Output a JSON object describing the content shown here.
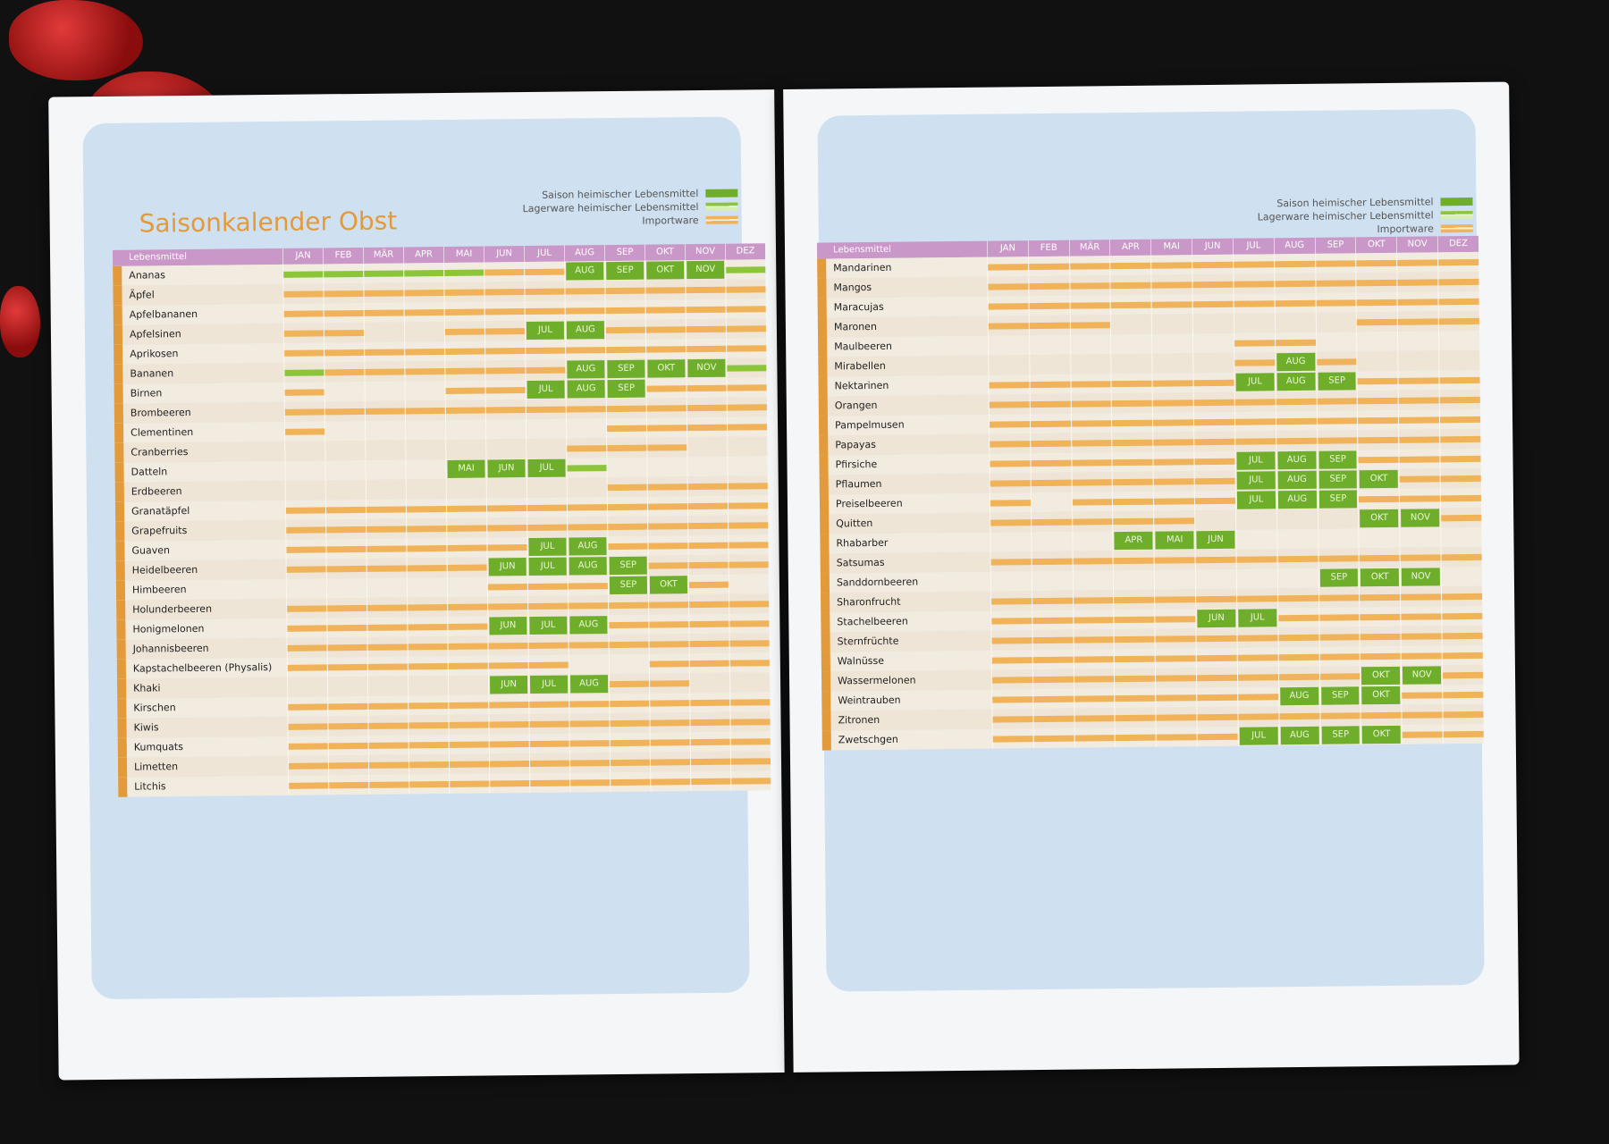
{
  "left_page": {
    "title": "Saisonkalender Obst",
    "legend": {
      "saison": "Saison heimischer Lebensmittel",
      "lager": "Lagerware heimischer Lebensmittel",
      "import": "Importware"
    },
    "column_header": "Lebensmittel",
    "months": [
      "JAN",
      "FEB",
      "MÄR",
      "APR",
      "MAI",
      "JUN",
      "JUL",
      "AUG",
      "SEP",
      "OKT",
      "NOV",
      "DEZ"
    ],
    "rows": [
      {
        "name": "Ananas",
        "cells": [
          "L",
          "L",
          "L",
          "L",
          "L",
          "I",
          "I",
          "S:AUG",
          "S:SEP",
          "S:OKT",
          "S:NOV",
          "L"
        ]
      },
      {
        "name": "Äpfel",
        "cells": [
          "I",
          "I",
          "I",
          "I",
          "I",
          "I",
          "I",
          "I",
          "I",
          "I",
          "I",
          "I"
        ]
      },
      {
        "name": "Apfelbananen",
        "cells": [
          "I",
          "I",
          "I",
          "I",
          "I",
          "I",
          "I",
          "I",
          "I",
          "I",
          "I",
          "I"
        ]
      },
      {
        "name": "Apfelsinen",
        "cells": [
          "I",
          "I",
          "",
          "",
          "I",
          "I",
          "S:JUL",
          "S:AUG",
          "I",
          "I",
          "I",
          "I"
        ]
      },
      {
        "name": "Aprikosen",
        "cells": [
          "I",
          "I",
          "I",
          "I",
          "I",
          "I",
          "I",
          "I",
          "I",
          "I",
          "I",
          "I"
        ]
      },
      {
        "name": "Bananen",
        "cells": [
          "L",
          "I",
          "I",
          "I",
          "I",
          "I",
          "I",
          "S:AUG",
          "S:SEP",
          "S:OKT",
          "S:NOV",
          "L"
        ]
      },
      {
        "name": "Birnen",
        "cells": [
          "I",
          "",
          "",
          "",
          "I",
          "I",
          "S:JUL",
          "S:AUG",
          "S:SEP",
          "I",
          "I",
          "I"
        ]
      },
      {
        "name": "Brombeeren",
        "cells": [
          "I",
          "I",
          "I",
          "I",
          "I",
          "I",
          "I",
          "I",
          "I",
          "I",
          "I",
          "I"
        ]
      },
      {
        "name": "Clementinen",
        "cells": [
          "I",
          "",
          "",
          "",
          "",
          "",
          "",
          "",
          "I",
          "I",
          "I",
          "I"
        ]
      },
      {
        "name": "Cranberries",
        "cells": [
          "",
          "",
          "",
          "",
          "",
          "",
          "",
          "I",
          "I",
          "I",
          "",
          ""
        ]
      },
      {
        "name": "Datteln",
        "cells": [
          "",
          "",
          "",
          "",
          "S:MAI",
          "S:JUN",
          "S:JUL",
          "L",
          "",
          "",
          "",
          ""
        ]
      },
      {
        "name": "Erdbeeren",
        "cells": [
          "",
          "",
          "",
          "",
          "",
          "",
          "",
          "",
          "I",
          "I",
          "I",
          "I"
        ]
      },
      {
        "name": "Granatäpfel",
        "cells": [
          "I",
          "I",
          "I",
          "I",
          "I",
          "I",
          "I",
          "I",
          "I",
          "I",
          "I",
          "I"
        ]
      },
      {
        "name": "Grapefruits",
        "cells": [
          "I",
          "I",
          "I",
          "I",
          "I",
          "I",
          "I",
          "I",
          "I",
          "I",
          "I",
          "I"
        ]
      },
      {
        "name": "Guaven",
        "cells": [
          "I",
          "I",
          "I",
          "I",
          "I",
          "I",
          "S:JUL",
          "S:AUG",
          "I",
          "I",
          "I",
          "I"
        ]
      },
      {
        "name": "Heidelbeeren",
        "cells": [
          "I",
          "I",
          "I",
          "I",
          "I",
          "S:JUN",
          "S:JUL",
          "S:AUG",
          "S:SEP",
          "I",
          "I",
          "I"
        ]
      },
      {
        "name": "Himbeeren",
        "cells": [
          "",
          "",
          "",
          "",
          "",
          "I",
          "I",
          "I",
          "S:SEP",
          "S:OKT",
          "I",
          ""
        ]
      },
      {
        "name": "Holunderbeeren",
        "cells": [
          "I",
          "I",
          "I",
          "I",
          "I",
          "I",
          "I",
          "I",
          "I",
          "I",
          "I",
          "I"
        ]
      },
      {
        "name": "Honigmelonen",
        "cells": [
          "I",
          "I",
          "I",
          "I",
          "I",
          "S:JUN",
          "S:JUL",
          "S:AUG",
          "I",
          "I",
          "I",
          "I"
        ]
      },
      {
        "name": "Johannisbeeren",
        "cells": [
          "I",
          "I",
          "I",
          "I",
          "I",
          "I",
          "I",
          "I",
          "I",
          "I",
          "I",
          "I"
        ]
      },
      {
        "name": "Kapstachelbeeren (Physalis)",
        "cells": [
          "I",
          "I",
          "I",
          "I",
          "I",
          "I",
          "I",
          "",
          "",
          "I",
          "I",
          "I"
        ]
      },
      {
        "name": "Khaki",
        "cells": [
          "",
          "",
          "",
          "",
          "",
          "S:JUN",
          "S:JUL",
          "S:AUG",
          "I",
          "I",
          "",
          ""
        ]
      },
      {
        "name": "Kirschen",
        "cells": [
          "I",
          "I",
          "I",
          "I",
          "I",
          "I",
          "I",
          "I",
          "I",
          "I",
          "I",
          "I"
        ]
      },
      {
        "name": "Kiwis",
        "cells": [
          "I",
          "I",
          "I",
          "I",
          "I",
          "I",
          "I",
          "I",
          "I",
          "I",
          "I",
          "I"
        ]
      },
      {
        "name": "Kumquats",
        "cells": [
          "I",
          "I",
          "I",
          "I",
          "I",
          "I",
          "I",
          "I",
          "I",
          "I",
          "I",
          "I"
        ]
      },
      {
        "name": "Limetten",
        "cells": [
          "I",
          "I",
          "I",
          "I",
          "I",
          "I",
          "I",
          "I",
          "I",
          "I",
          "I",
          "I"
        ]
      },
      {
        "name": "Litchis",
        "cells": [
          "I",
          "I",
          "I",
          "I",
          "I",
          "I",
          "I",
          "I",
          "I",
          "I",
          "I",
          "I"
        ]
      }
    ]
  },
  "right_page": {
    "legend": {
      "saison": "Saison heimischer Lebensmittel",
      "lager": "Lagerware heimischer Lebensmittel",
      "import": "Importware"
    },
    "column_header": "Lebensmittel",
    "months": [
      "JAN",
      "FEB",
      "MÄR",
      "APR",
      "MAI",
      "JUN",
      "JUL",
      "AUG",
      "SEP",
      "OKT",
      "NOV",
      "DEZ"
    ],
    "rows": [
      {
        "name": "Mandarinen",
        "cells": [
          "I",
          "I",
          "I",
          "I",
          "I",
          "I",
          "I",
          "I",
          "I",
          "I",
          "I",
          "I"
        ]
      },
      {
        "name": "Mangos",
        "cells": [
          "I",
          "I",
          "I",
          "I",
          "I",
          "I",
          "I",
          "I",
          "I",
          "I",
          "I",
          "I"
        ]
      },
      {
        "name": "Maracujas",
        "cells": [
          "I",
          "I",
          "I",
          "I",
          "I",
          "I",
          "I",
          "I",
          "I",
          "I",
          "I",
          "I"
        ]
      },
      {
        "name": "Maronen",
        "cells": [
          "I",
          "I",
          "I",
          "",
          "",
          "",
          "",
          "",
          "",
          "I",
          "I",
          "I"
        ]
      },
      {
        "name": "Maulbeeren",
        "cells": [
          "",
          "",
          "",
          "",
          "",
          "",
          "I",
          "I",
          "",
          "",
          "",
          ""
        ]
      },
      {
        "name": "Mirabellen",
        "cells": [
          "",
          "",
          "",
          "",
          "",
          "",
          "I",
          "S:AUG",
          "I",
          "",
          "",
          ""
        ]
      },
      {
        "name": "Nektarinen",
        "cells": [
          "I",
          "I",
          "I",
          "I",
          "I",
          "I",
          "S:JUL",
          "S:AUG",
          "S:SEP",
          "I",
          "I",
          "I"
        ]
      },
      {
        "name": "Orangen",
        "cells": [
          "I",
          "I",
          "I",
          "I",
          "I",
          "I",
          "I",
          "I",
          "I",
          "I",
          "I",
          "I"
        ]
      },
      {
        "name": "Pampelmusen",
        "cells": [
          "I",
          "I",
          "I",
          "I",
          "I",
          "I",
          "I",
          "I",
          "I",
          "I",
          "I",
          "I"
        ]
      },
      {
        "name": "Papayas",
        "cells": [
          "I",
          "I",
          "I",
          "I",
          "I",
          "I",
          "I",
          "I",
          "I",
          "I",
          "I",
          "I"
        ]
      },
      {
        "name": "Pfirsiche",
        "cells": [
          "I",
          "I",
          "I",
          "I",
          "I",
          "I",
          "S:JUL",
          "S:AUG",
          "S:SEP",
          "I",
          "I",
          "I"
        ]
      },
      {
        "name": "Pflaumen",
        "cells": [
          "I",
          "I",
          "I",
          "I",
          "I",
          "I",
          "S:JUL",
          "S:AUG",
          "S:SEP",
          "S:OKT",
          "I",
          "I"
        ]
      },
      {
        "name": "Preiselbeeren",
        "cells": [
          "I",
          "",
          "I",
          "I",
          "I",
          "I",
          "S:JUL",
          "S:AUG",
          "S:SEP",
          "I",
          "I",
          "I"
        ]
      },
      {
        "name": "Quitten",
        "cells": [
          "I",
          "I",
          "I",
          "I",
          "I",
          "",
          "",
          "",
          "",
          "S:OKT",
          "S:NOV",
          "I"
        ]
      },
      {
        "name": "Rhabarber",
        "cells": [
          "",
          "",
          "",
          "S:APR",
          "S:MAI",
          "S:JUN",
          "",
          "",
          "",
          "",
          "",
          ""
        ]
      },
      {
        "name": "Satsumas",
        "cells": [
          "I",
          "I",
          "I",
          "I",
          "I",
          "I",
          "I",
          "I",
          "I",
          "I",
          "I",
          "I"
        ]
      },
      {
        "name": "Sanddornbeeren",
        "cells": [
          "",
          "",
          "",
          "",
          "",
          "",
          "",
          "",
          "S:SEP",
          "S:OKT",
          "S:NOV",
          ""
        ]
      },
      {
        "name": "Sharonfrucht",
        "cells": [
          "I",
          "I",
          "I",
          "I",
          "I",
          "I",
          "I",
          "I",
          "I",
          "I",
          "I",
          "I"
        ]
      },
      {
        "name": "Stachelbeeren",
        "cells": [
          "I",
          "I",
          "I",
          "I",
          "I",
          "S:JUN",
          "S:JUL",
          "I",
          "I",
          "I",
          "I",
          "I"
        ]
      },
      {
        "name": "Sternfrüchte",
        "cells": [
          "I",
          "I",
          "I",
          "I",
          "I",
          "I",
          "I",
          "I",
          "I",
          "I",
          "I",
          "I"
        ]
      },
      {
        "name": "Walnüsse",
        "cells": [
          "I",
          "I",
          "I",
          "I",
          "I",
          "I",
          "I",
          "I",
          "I",
          "I",
          "I",
          "I"
        ]
      },
      {
        "name": "Wassermelonen",
        "cells": [
          "I",
          "I",
          "I",
          "I",
          "I",
          "I",
          "I",
          "I",
          "I",
          "S:OKT",
          "S:NOV",
          "I"
        ]
      },
      {
        "name": "Weintrauben",
        "cells": [
          "I",
          "I",
          "I",
          "I",
          "I",
          "I",
          "I",
          "S:AUG",
          "S:SEP",
          "S:OKT",
          "I",
          "I"
        ]
      },
      {
        "name": "Zitronen",
        "cells": [
          "I",
          "I",
          "I",
          "I",
          "I",
          "I",
          "I",
          "I",
          "I",
          "I",
          "I",
          "I"
        ]
      },
      {
        "name": "Zwetschgen",
        "cells": [
          "I",
          "I",
          "I",
          "I",
          "I",
          "I",
          "S:JUL",
          "S:AUG",
          "S:SEP",
          "S:OKT",
          "I",
          "I"
        ]
      }
    ]
  },
  "colors": {
    "saison_green": "#6fae2a",
    "lager_green": "#8cc43a",
    "import_orange": "#f0b35a",
    "header_purple": "#c997c8",
    "title_orange": "#e39a3a",
    "panel_blue": "#cfe0f1"
  }
}
